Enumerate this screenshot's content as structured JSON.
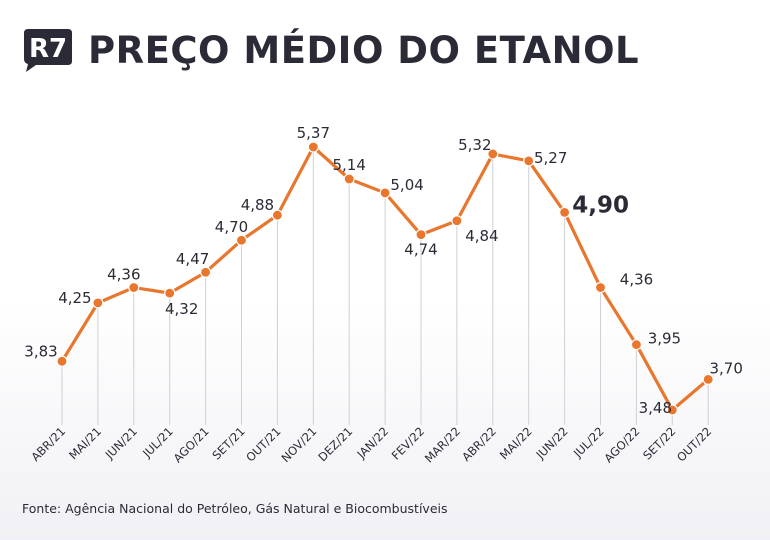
{
  "header": {
    "logo_text": "R7",
    "title": "PREÇO MÉDIO DO ETANOL"
  },
  "footer": {
    "source": "Fonte: Agência Nacional do Petróleo, Gás Natural e Biocombustíveis"
  },
  "colors": {
    "line": "#e8762d",
    "text": "#2b2b37",
    "grid": "#d0d0d6",
    "logo_bg": "#2b2b37"
  },
  "chart_data": {
    "type": "line",
    "title": "PREÇO MÉDIO DO ETANOL",
    "xlabel": "",
    "ylabel": "",
    "grid": "vertical",
    "categories": [
      "ABR/21",
      "MAI/21",
      "JUN/21",
      "JUL/21",
      "AGO/21",
      "SET/21",
      "OUT/21",
      "NOV/21",
      "DEZ/21",
      "JAN/22",
      "FEV/22",
      "MAR/22",
      "ABR/22",
      "MAI/22",
      "JUN/22",
      "JUL/22",
      "AGO/22",
      "SET/22",
      "OUT/22"
    ],
    "values": [
      3.83,
      4.25,
      4.36,
      4.32,
      4.47,
      4.7,
      4.88,
      5.37,
      5.14,
      5.04,
      4.74,
      4.84,
      5.32,
      5.27,
      4.9,
      4.36,
      3.95,
      3.48,
      3.7
    ],
    "labels": [
      "3,83",
      "4,25",
      "4,36",
      "4,32",
      "4,47",
      "4,70",
      "4,88",
      "5,37",
      "5,14",
      "5,04",
      "4,74",
      "4,84",
      "5,32",
      "5,27",
      "4,90",
      "4,36",
      "3,95",
      "3,48",
      "3,70"
    ],
    "highlight_index": 14
  }
}
